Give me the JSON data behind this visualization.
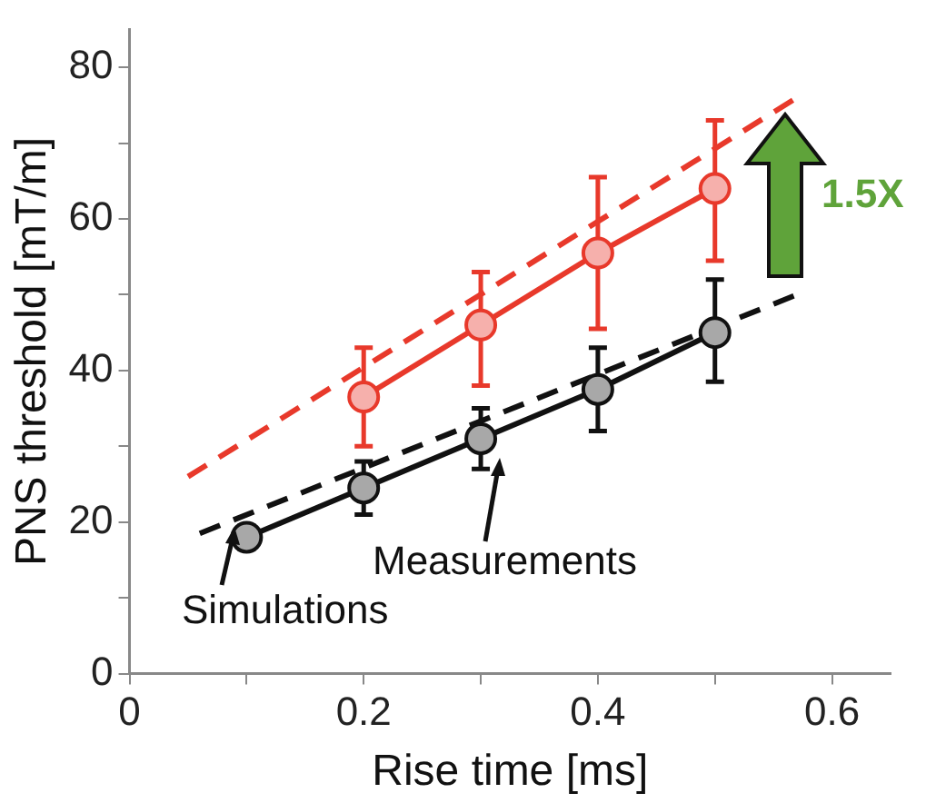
{
  "chart_data": {
    "type": "line",
    "xlabel": "Rise time [ms]",
    "ylabel": "PNS threshold [mT/m]",
    "x": [
      0.1,
      0.2,
      0.3,
      0.4,
      0.5
    ],
    "series": [
      {
        "color": "#e8392b",
        "x": [
          0.2,
          0.3,
          0.4,
          0.5
        ],
        "values": [
          36.5,
          46,
          55.5,
          64
        ],
        "errors": [
          [
            30,
            43
          ],
          [
            38,
            53
          ],
          [
            45.5,
            65.5
          ],
          [
            54.5,
            73
          ]
        ]
      },
      {
        "color": "#111111",
        "values": [
          18,
          24.5,
          31,
          37.5,
          45
        ],
        "errors": [
          [
            16.5,
            19.5
          ],
          [
            21,
            28
          ],
          [
            27,
            35
          ],
          [
            32,
            43
          ],
          [
            38.5,
            52
          ]
        ]
      },
      {
        "color": "#e8392b",
        "x": [
          0.05,
          0.57
        ],
        "values": [
          26,
          76
        ],
        "line_style": "dashed",
        "marker": "none"
      },
      {
        "color": "#111111",
        "x": [
          0.06,
          0.57
        ],
        "values": [
          18.5,
          50
        ],
        "line_style": "dashed",
        "marker": "none"
      }
    ],
    "marker": "circle",
    "line_style": "solid",
    "xlim": [
      0,
      0.65
    ],
    "xticks": [
      0,
      {
        "value": 0.1,
        "label": null
      },
      0.2,
      {
        "value": 0.3,
        "label": null
      },
      0.4,
      {
        "value": 0.5,
        "label": null
      },
      0.6
    ],
    "ylim": [
      0,
      85
    ],
    "yticks": [
      0,
      {
        "value": 10,
        "label": null
      },
      20,
      {
        "value": 30,
        "label": null
      },
      40,
      {
        "value": 50,
        "label": null
      },
      60,
      {
        "value": 70,
        "label": null
      },
      80
    ],
    "grid": false,
    "legend": false,
    "annotations": [
      "1.5X",
      "Simulations",
      "Measurements"
    ]
  }
}
